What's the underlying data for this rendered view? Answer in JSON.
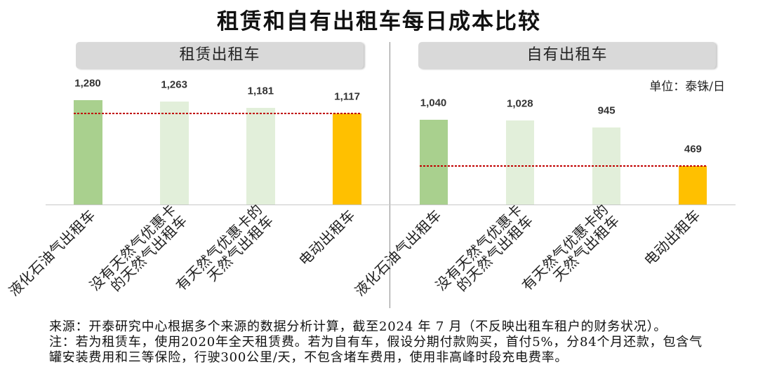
{
  "title": "租赁和自有出租车每日成本比较",
  "unit": "单位：泰铢/日",
  "footnotes": [
    "来源：开泰研究中心根据多个来源的数据分析计算，截至2024 年 7 月（不反映出租车租户的财务状况）。",
    "注：若为租赁车，使用2020年全天租赁费。若为自有车，假设分期付款购买，首付5%，分84个月还款，包含气",
    "罐安装费用和三等保险，行驶300公里/天，不包含堵车费用，使用非高峰时段充电费率。"
  ],
  "chart_data": [
    {
      "type": "bar",
      "title": "租赁出租车",
      "categories": [
        "液化石油气出租车",
        "没有天然气优惠卡\n的天然气出租车",
        "有天然气优惠卡的\n天然气出租车",
        "电动出租车"
      ],
      "values": [
        1280,
        1263,
        1181,
        1117
      ],
      "value_labels": [
        "1,280",
        "1,263",
        "1,181",
        "1,117"
      ],
      "bar_colors": [
        "#a9d08e",
        "#e2efda",
        "#e2efda",
        "#ffc000"
      ],
      "reference_value": 1117,
      "reference_line_color": "#c00000",
      "ylim": [
        0,
        1400
      ],
      "grid": false
    },
    {
      "type": "bar",
      "title": "自有出租车",
      "categories": [
        "液化石油气出租车",
        "没有天然气优惠卡\n的天然气出租车",
        "有天然气优惠卡的\n天然气出租车",
        "电动出租车"
      ],
      "values": [
        1040,
        1028,
        945,
        469
      ],
      "value_labels": [
        "1,040",
        "1,028",
        "945",
        "469"
      ],
      "bar_colors": [
        "#a9d08e",
        "#e2efda",
        "#e2efda",
        "#ffc000"
      ],
      "reference_value": 469,
      "reference_line_color": "#c00000",
      "ylim": [
        0,
        1400
      ],
      "grid": false
    }
  ]
}
